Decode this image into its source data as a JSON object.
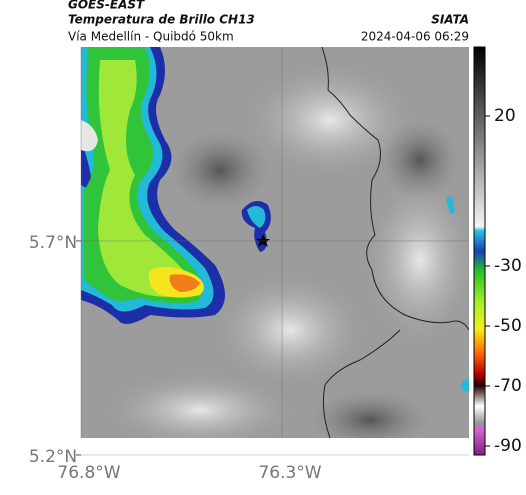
{
  "header": {
    "title": "GOES-EAST",
    "subtitle": "Temperatura de Brillo CH13",
    "left_note": "Vía Medellín - Quibdó 50km",
    "source": "SIATA",
    "timestamp": "2024-04-06 06:29"
  },
  "map": {
    "xlim": [
      -76.8,
      -75.835
    ],
    "ylim": [
      5.2,
      6.153
    ],
    "xticks": [
      {
        "value": -76.8,
        "label": "76.8°W"
      },
      {
        "value": -76.3,
        "label": "76.3°W"
      }
    ],
    "yticks": [
      {
        "value": 5.2,
        "label": "5.2°N"
      },
      {
        "value": 5.7,
        "label": "5.7°N"
      }
    ],
    "grid": true
  },
  "colorbar": {
    "clim": [
      -93,
      43
    ],
    "ticks": [
      20,
      -30,
      -50,
      -70,
      -90
    ]
  }
}
